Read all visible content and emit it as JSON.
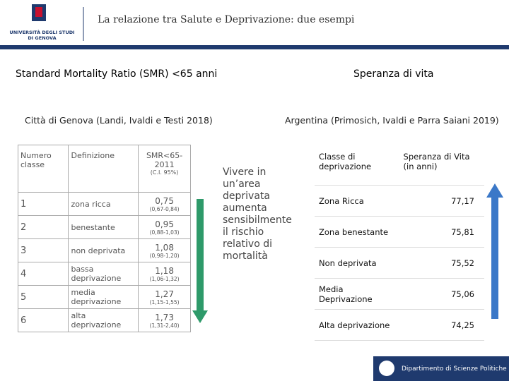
{
  "header": {
    "logo_text": [
      "UNIVERSITÀ DEGLI STUDI",
      "DI GENOVA"
    ],
    "title": "La relazione tra Salute e Deprivazione: due esempi"
  },
  "left": {
    "heading": "Standard Mortality Ratio (SMR) <65 anni",
    "subtitle": "Città di Genova (Landi, Ivaldi e Testi 2018)",
    "table": {
      "header": [
        "Numero classe",
        "Definizione",
        "SMR<65-2011",
        "(C.I. 95%)"
      ],
      "rows": [
        [
          "1",
          "zona ricca",
          "0,75",
          "(0,67-0,84)"
        ],
        [
          "2",
          "benestante",
          "0,95",
          "(0,88-1,03)"
        ],
        [
          "3",
          "non deprivata",
          "1,08",
          "(0,98-1,20)"
        ],
        [
          "4",
          "bassa deprivazione",
          "1,18",
          "(1,06-1,32)"
        ],
        [
          "5",
          "media deprivazione",
          "1,27",
          "(1,15-1,55)"
        ],
        [
          "6",
          "alta deprivazione",
          "1,73",
          "(1,31-2,40)"
        ]
      ]
    },
    "annotation": "Vivere in un’area deprivata aumenta sensibilmente il rischio relativo di mortalità"
  },
  "right": {
    "heading": "Speranza di vita",
    "subtitle": "Argentina (Primosich, Ivaldi e Parra Saiani 2019)",
    "table": {
      "header": [
        "Classe di deprivazione",
        "Speranza di Vita (in anni)"
      ],
      "rows": [
        [
          "Zona Ricca",
          "77,17"
        ],
        [
          "Zona benestante",
          "75,81"
        ],
        [
          "Non deprivata",
          "75,52"
        ],
        [
          "Media Deprivazione",
          "75,06"
        ],
        [
          "Alta deprivazione",
          "74,25"
        ]
      ]
    }
  },
  "footer": {
    "department": "Dipartimento di Scienze Politiche"
  }
}
